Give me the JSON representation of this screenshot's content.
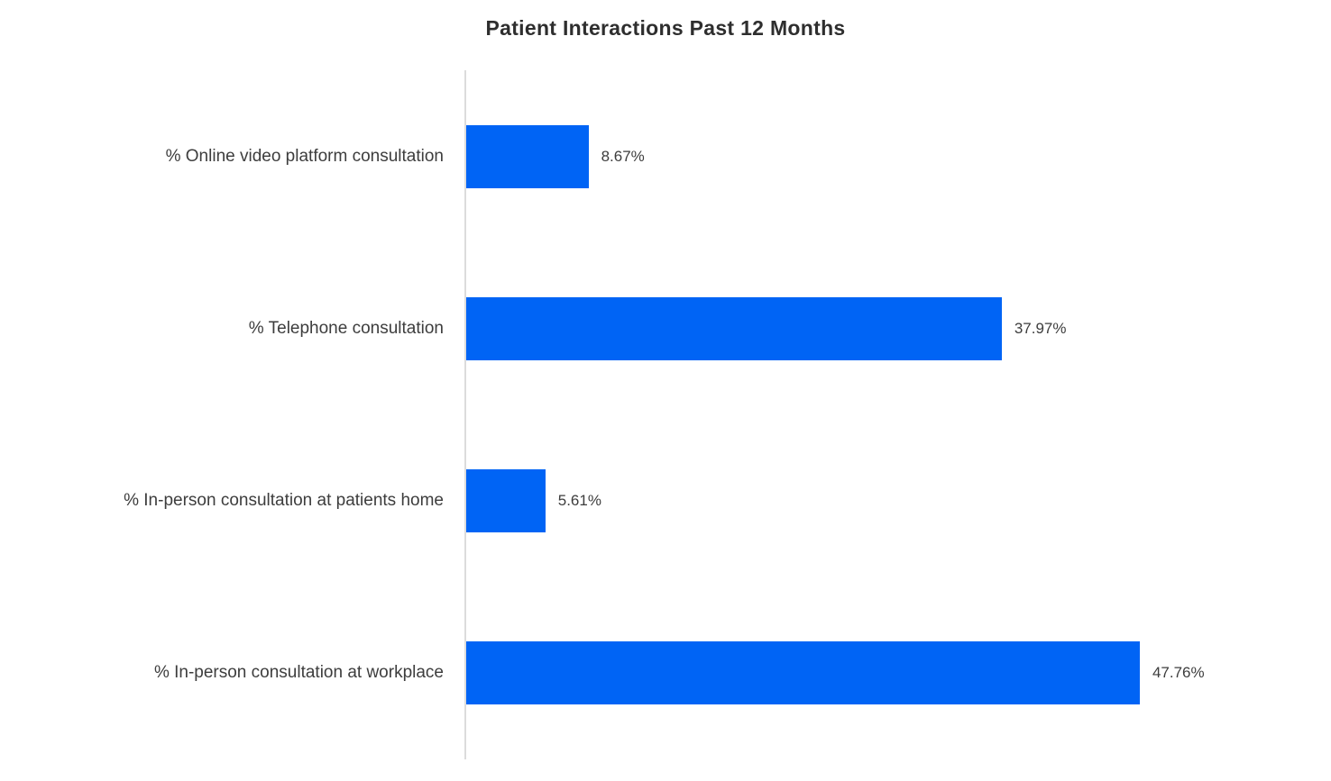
{
  "title": "Patient Interactions Past 12 Months",
  "chart_data": {
    "type": "bar",
    "orientation": "horizontal",
    "title": "Patient Interactions Past 12 Months",
    "categories": [
      "% Online video platform consultation",
      "% Telephone consultation",
      "% In-person consultation at patients home",
      "% In-person consultation at workplace"
    ],
    "values": [
      8.67,
      37.97,
      5.61,
      47.76
    ],
    "value_labels": [
      "8.67%",
      "37.97%",
      "5.61%",
      "47.76%"
    ],
    "xlabel": "",
    "ylabel": "",
    "xlim": [
      0,
      50
    ],
    "grid": false,
    "legend": false,
    "bar_color": "#0064f5",
    "axis_line_color": "#dcdcdc",
    "text_color": "#3d3d3d"
  }
}
